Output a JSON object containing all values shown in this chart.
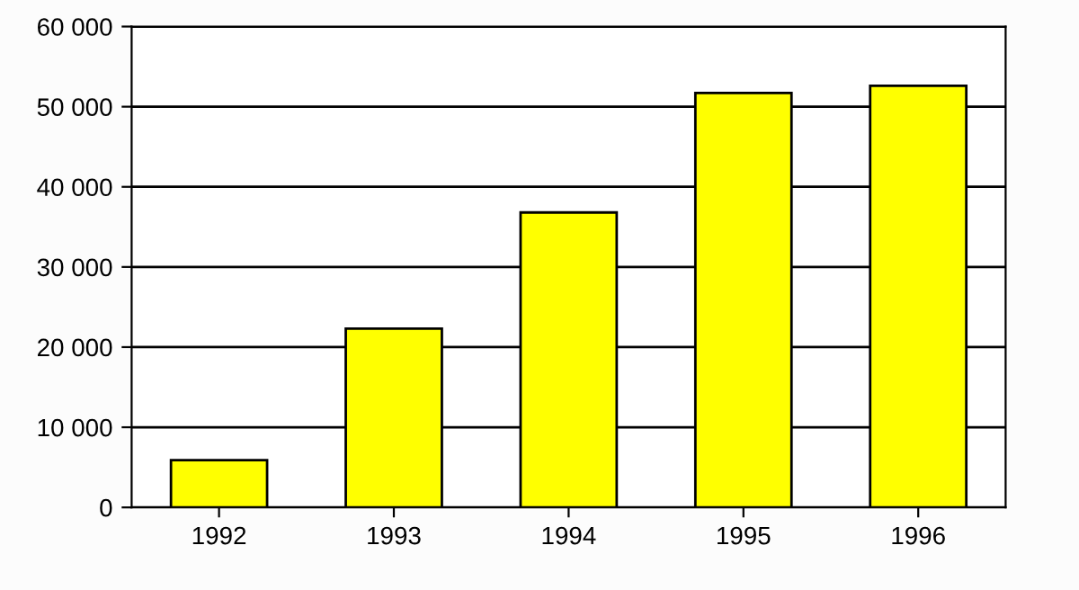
{
  "chart_data": {
    "type": "bar",
    "categories": [
      "1992",
      "1993",
      "1994",
      "1995",
      "1996"
    ],
    "values": [
      5900,
      22300,
      36800,
      51700,
      52600
    ],
    "color": "#ffff00",
    "ylim": [
      0,
      60000
    ],
    "yticks": [
      {
        "value": 0,
        "label": "0"
      },
      {
        "value": 10000,
        "label": "10 000"
      },
      {
        "value": 20000,
        "label": "20 000"
      },
      {
        "value": 30000,
        "label": "30 000"
      },
      {
        "value": 40000,
        "label": "40 000"
      },
      {
        "value": 50000,
        "label": "50 000"
      },
      {
        "value": 60000,
        "label": "60 000"
      }
    ],
    "grid": "y",
    "legend": false
  }
}
